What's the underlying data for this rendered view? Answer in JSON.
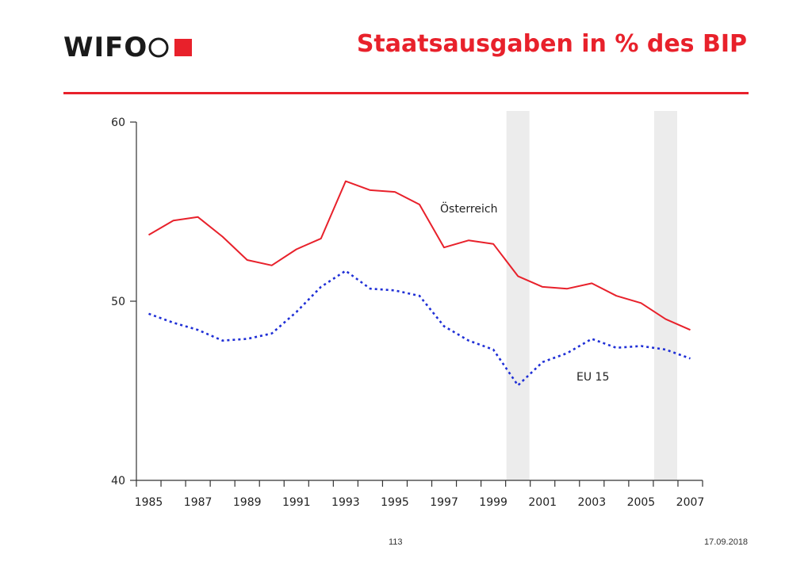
{
  "header": {
    "logo_text": "WIFO",
    "title": "Staatsausgaben in % des BIP"
  },
  "footer": {
    "page_number": "113",
    "date": "17.09.2018"
  },
  "colors": {
    "austria": "#e8212b",
    "eu15": "#1f2fd6",
    "shade": "#ececec",
    "axis": "#333333"
  },
  "chart_data": {
    "type": "line",
    "title": "Staatsausgaben in % des BIP",
    "xlabel": "",
    "ylabel": "",
    "xlim": [
      1985,
      2007
    ],
    "ylim": [
      40,
      60
    ],
    "y_ticks": [
      40,
      50,
      60
    ],
    "x_tick_labels": [
      "1985",
      "1987",
      "1989",
      "1991",
      "1993",
      "1995",
      "1997",
      "1999",
      "2001",
      "2003",
      "2005",
      "2007"
    ],
    "x": [
      1985,
      1986,
      1987,
      1988,
      1989,
      1990,
      1991,
      1992,
      1993,
      1994,
      1995,
      1996,
      1997,
      1998,
      1999,
      2000,
      2001,
      2002,
      2003,
      2004,
      2005,
      2006,
      2007
    ],
    "shaded_years": [
      2000,
      2006
    ],
    "series": [
      {
        "name": "Österreich",
        "style": "solid",
        "values": [
          53.7,
          54.5,
          54.7,
          53.6,
          52.3,
          52.0,
          52.9,
          53.5,
          56.7,
          56.2,
          56.1,
          55.4,
          53.0,
          53.4,
          53.2,
          51.4,
          50.8,
          50.7,
          51.0,
          50.3,
          49.9,
          49.0,
          48.4
        ]
      },
      {
        "name": "EU 15",
        "style": "dotted",
        "values": [
          49.3,
          48.8,
          48.4,
          47.8,
          47.9,
          48.2,
          49.4,
          50.8,
          51.7,
          50.7,
          50.6,
          50.3,
          48.6,
          47.8,
          47.3,
          45.3,
          46.6,
          47.1,
          47.9,
          47.4,
          47.5,
          47.3,
          46.8
        ]
      }
    ]
  }
}
